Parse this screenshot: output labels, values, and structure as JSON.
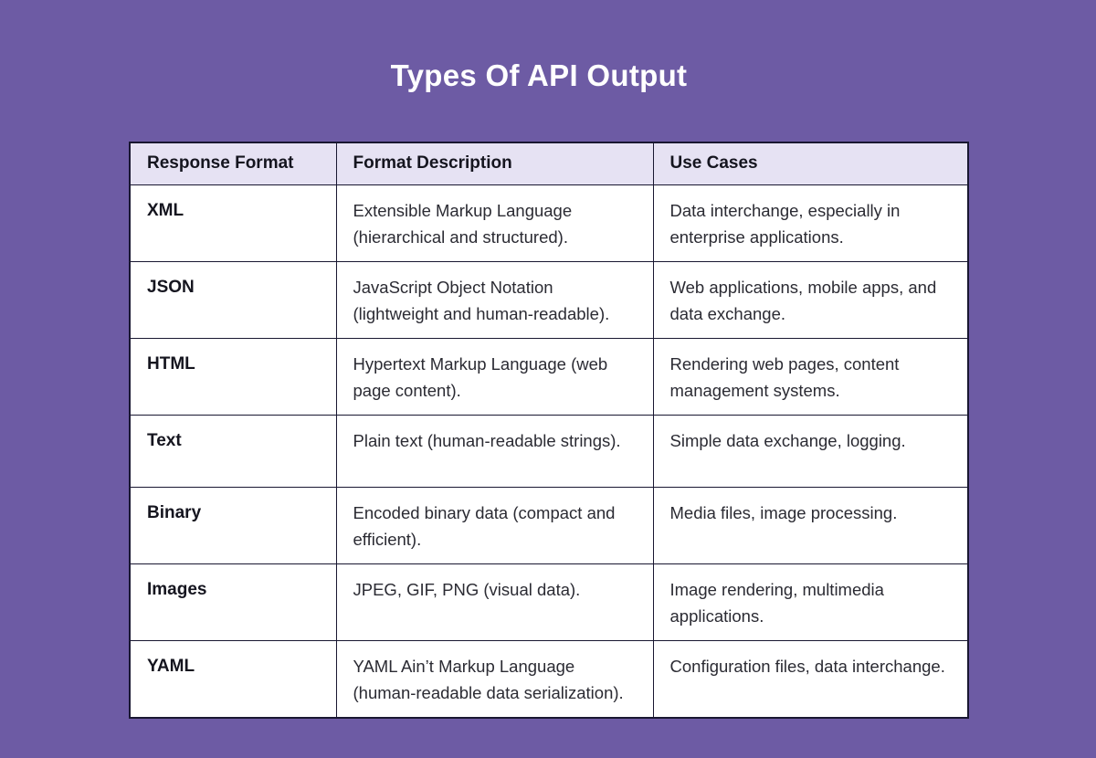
{
  "title": "Types Of API Output",
  "table": {
    "headers": {
      "format": "Response Format",
      "description": "Format Description",
      "use_cases": "Use Cases"
    },
    "rows": [
      {
        "format": "XML",
        "description": "Extensible Markup Language (hierarchical and structured).",
        "use_cases": "Data interchange, especially in enterprise applications."
      },
      {
        "format": "JSON",
        "description": "JavaScript Object Notation (lightweight and human-readable).",
        "use_cases": "Web applications, mobile apps, and data exchange."
      },
      {
        "format": "HTML",
        "description": "Hypertext Markup Language (web page content).",
        "use_cases": "Rendering web pages, content management systems."
      },
      {
        "format": "Text",
        "description": "Plain text (human-readable strings).",
        "use_cases": "Simple data exchange, logging."
      },
      {
        "format": "Binary",
        "description": "Encoded binary data (compact and efficient).",
        "use_cases": "Media files, image processing."
      },
      {
        "format": "Images",
        "description": "JPEG, GIF, PNG (visual data).",
        "use_cases": "Image rendering, multimedia applications."
      },
      {
        "format": "YAML",
        "description": "YAML Ain’t Markup Language (human-readable data serialization).",
        "use_cases": "Configuration files, data interchange."
      }
    ]
  },
  "colors": {
    "background": "#6d5ba4",
    "header_bg": "#e6e2f3",
    "border": "#191731",
    "title_text": "#ffffff"
  }
}
